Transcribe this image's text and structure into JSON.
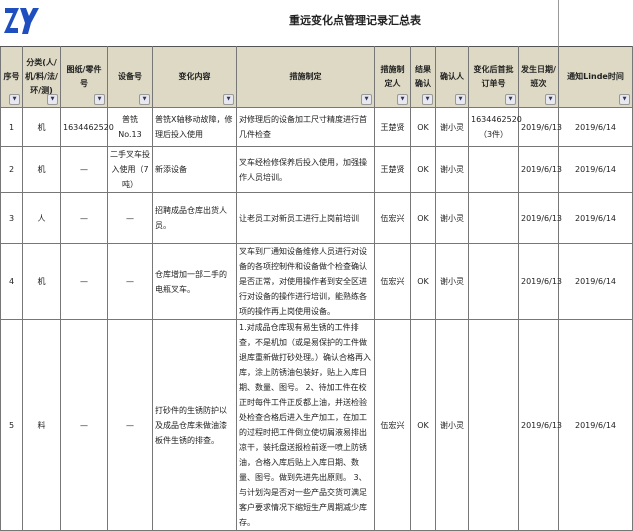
{
  "title": "重远变化点管理记录汇总表",
  "logo": "ZY",
  "accent": "#1f4fbf",
  "header_bg": "#ddd9c4",
  "columns": [
    "序号",
    "分类(人/机/料/法/环/测)",
    "图纸/零件号",
    "设备号",
    "变化内容",
    "措施制定",
    "措施制定人",
    "结果确认",
    "确认人",
    "变化后首批订单号",
    "发生日期/班次",
    "通知Linde时间"
  ],
  "rows": [
    {
      "no": "1",
      "cat": "机",
      "part": "1634462520",
      "equip": "普铣 No.13",
      "change": "普铣X轴移动故障，修理后投入使用",
      "measure": "对修理后的设备加工尺寸精度进行首几件检查",
      "maker": "王楚贤",
      "result": "OK",
      "confirmer": "谢小灵",
      "order": "1634462520（3件）",
      "date": "2019/6/13",
      "notify": "2019/6/14"
    },
    {
      "no": "2",
      "cat": "机",
      "part": "—",
      "equip": "二手叉车投入使用（7吨）",
      "change": "新添设备",
      "measure": "叉车经检修保养后投入使用，加强操作人员培训。",
      "maker": "王楚贤",
      "result": "OK",
      "confirmer": "谢小灵",
      "order": "",
      "date": "2019/6/13",
      "notify": "2019/6/14"
    },
    {
      "no": "3",
      "cat": "人",
      "part": "—",
      "equip": "—",
      "change": "招聘成品仓库出货人员。",
      "measure": "让老员工对新员工进行上岗前培训",
      "maker": "伍宏兴",
      "result": "OK",
      "confirmer": "谢小灵",
      "order": "",
      "date": "2019/6/13",
      "notify": "2019/6/14"
    },
    {
      "no": "4",
      "cat": "机",
      "part": "—",
      "equip": "—",
      "change": "仓库增加一部二手的电瓶叉车。",
      "measure": "叉车到厂通知设备维修人员进行对设备的各项控制件和设备做个检查确认是否正常，对使用操作者到安全区进行对设备的操作进行培训，能熟练各项的操作再上岗使用设备。",
      "maker": "伍宏兴",
      "result": "OK",
      "confirmer": "谢小灵",
      "order": "",
      "date": "2019/6/13",
      "notify": "2019/6/14"
    },
    {
      "no": "5",
      "cat": "料",
      "part": "—",
      "equip": "—",
      "change": "打砂件的生锈防护以及成品仓库未做油漆板件生锈的排查。",
      "measure": "1.对成品仓库现有易生锈的工件排查，不是机加（或是易保护的工件做退库重新做打砂处理。）确认合格再入库，涂上防锈油包装好，贴上入库日期、数量、图号。 2、待加工件在校正时每件工件正反都上油，并送检验处检查合格后进入生产加工，在加工的过程时把工件倒立使切屑液易排出凉干，装托盘送报检前逐一喷上防锈油，合格入库后贴上入库日期、数量、图号。做到先进先出原则。 3、与计划沟是否对一些产品交货可满足客户要求情况下缩短生产周期减少库存。",
      "maker": "伍宏兴",
      "result": "OK",
      "confirmer": "谢小灵",
      "order": "",
      "date": "2019/6/13",
      "notify": "2019/6/14"
    }
  ]
}
